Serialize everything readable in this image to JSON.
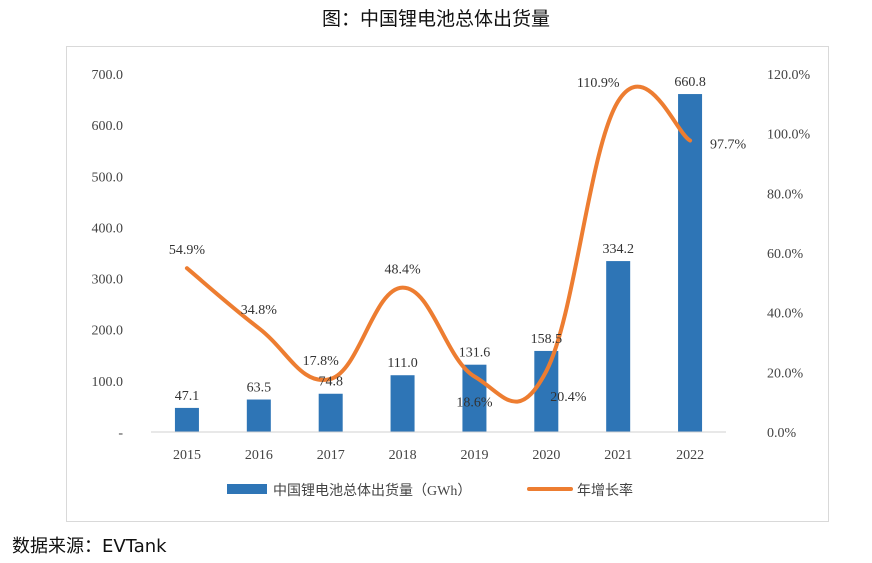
{
  "figure_title": "图：中国锂电池总体出货量",
  "source_note": "数据来源：EVTank",
  "colors": {
    "bar": "#2e75b6",
    "line": "#ed7d31"
  },
  "chart_data": {
    "type": "bar",
    "categories": [
      "2015",
      "2016",
      "2017",
      "2018",
      "2019",
      "2020",
      "2021",
      "2022"
    ],
    "series": [
      {
        "name": "中国锂电池总体出货量（GWh）",
        "type": "bar",
        "axis": "left",
        "values": [
          47.1,
          63.5,
          74.8,
          111.0,
          131.6,
          158.5,
          334.2,
          660.8
        ],
        "labels": [
          "47.1",
          "63.5",
          "74.8",
          "111.0",
          "131.6",
          "158.5",
          "334.2",
          "660.8"
        ]
      },
      {
        "name": "年增长率",
        "type": "line",
        "axis": "right",
        "values": [
          54.9,
          34.8,
          17.8,
          48.4,
          18.6,
          20.4,
          110.9,
          97.7
        ],
        "labels": [
          "54.9%",
          "34.8%",
          "17.8%",
          "48.4%",
          "18.6%",
          "20.4%",
          "110.9%",
          "97.7%"
        ]
      }
    ],
    "y_left": {
      "ylim": [
        0,
        700
      ],
      "ticks": [
        "-",
        "100.0",
        "200.0",
        "300.0",
        "400.0",
        "500.0",
        "600.0",
        "700.0"
      ]
    },
    "y_right": {
      "ylim": [
        0,
        120
      ],
      "ticks": [
        "0.0%",
        "20.0%",
        "40.0%",
        "60.0%",
        "80.0%",
        "100.0%",
        "120.0%"
      ]
    },
    "grid": false,
    "legend_position": "bottom"
  }
}
